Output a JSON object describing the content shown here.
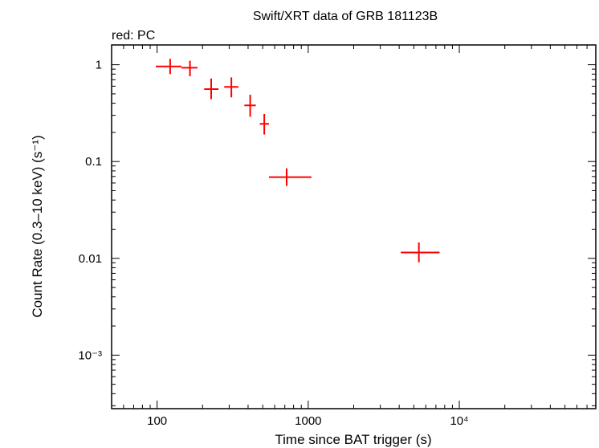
{
  "chart_data": {
    "type": "scatter",
    "title": "Swift/XRT data of GRB 181123B",
    "subtitle": "red: PC",
    "xlabel": "Time since BAT trigger (s)",
    "ylabel": "Count Rate (0.3–10 keV) (s⁻¹)",
    "x_scale": "log",
    "y_scale": "log",
    "xlim": [
      50,
      80000
    ],
    "ylim": [
      0.00028,
      1.6
    ],
    "x_ticks": [
      {
        "value": 100,
        "label": "100"
      },
      {
        "value": 1000,
        "label": "1000"
      },
      {
        "value": 10000,
        "label": "10⁴"
      }
    ],
    "y_ticks": [
      {
        "value": 1,
        "label": "1"
      },
      {
        "value": 0.1,
        "label": "0.1"
      },
      {
        "value": 0.01,
        "label": "0.01"
      },
      {
        "value": 0.001,
        "label": "10⁻³"
      }
    ],
    "grid": false,
    "series": [
      {
        "name": "PC",
        "color": "#ff0000",
        "points": [
          {
            "x": 122,
            "xlo": 98,
            "xhi": 145,
            "y": 0.96,
            "ylo": 0.8,
            "yhi": 1.15
          },
          {
            "x": 165,
            "xlo": 145,
            "xhi": 185,
            "y": 0.93,
            "ylo": 0.76,
            "yhi": 1.1
          },
          {
            "x": 228,
            "xlo": 205,
            "xhi": 255,
            "y": 0.56,
            "ylo": 0.44,
            "yhi": 0.72
          },
          {
            "x": 310,
            "xlo": 278,
            "xhi": 345,
            "y": 0.59,
            "ylo": 0.46,
            "yhi": 0.74
          },
          {
            "x": 413,
            "xlo": 378,
            "xhi": 450,
            "y": 0.38,
            "ylo": 0.29,
            "yhi": 0.49
          },
          {
            "x": 512,
            "xlo": 478,
            "xhi": 550,
            "y": 0.245,
            "ylo": 0.19,
            "yhi": 0.31
          },
          {
            "x": 720,
            "xlo": 550,
            "xhi": 1050,
            "y": 0.069,
            "ylo": 0.056,
            "yhi": 0.085
          },
          {
            "x": 5400,
            "xlo": 4100,
            "xhi": 7400,
            "y": 0.0115,
            "ylo": 0.0091,
            "yhi": 0.0146
          }
        ]
      }
    ]
  }
}
